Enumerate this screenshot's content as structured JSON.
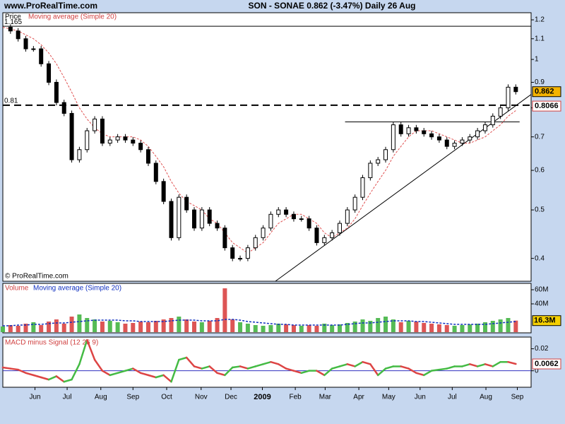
{
  "header": {
    "site": "www.ProRealTime.com",
    "title": "SON - SONAE    0.862 (-3.47%)    Daily  26 Aug",
    "copyright": "© ProRealTime.com"
  },
  "chart_data": [
    {
      "type": "line",
      "title": "Price",
      "log_scale": true,
      "ylim": [
        0.36,
        1.24
      ],
      "yticks": [
        0.4,
        0.5,
        0.6,
        0.7,
        0.8,
        0.9,
        1,
        1.1,
        1.2
      ],
      "xlim": [
        0,
        69
      ],
      "series": [
        {
          "name": "Price",
          "color": "#000000",
          "values": [
            1.16,
            1.14,
            1.1,
            1.05,
            1.05,
            0.98,
            0.9,
            0.82,
            0.78,
            0.63,
            0.66,
            0.72,
            0.76,
            0.68,
            0.69,
            0.7,
            0.69,
            0.68,
            0.66,
            0.62,
            0.57,
            0.52,
            0.44,
            0.53,
            0.5,
            0.46,
            0.5,
            0.47,
            0.46,
            0.42,
            0.4,
            0.4,
            0.42,
            0.44,
            0.46,
            0.49,
            0.5,
            0.49,
            0.48,
            0.48,
            0.46,
            0.43,
            0.44,
            0.45,
            0.47,
            0.5,
            0.53,
            0.58,
            0.62,
            0.63,
            0.66,
            0.74,
            0.71,
            0.73,
            0.72,
            0.71,
            0.7,
            0.69,
            0.67,
            0.68,
            0.69,
            0.7,
            0.72,
            0.74,
            0.77,
            0.8,
            0.88,
            0.862
          ]
        },
        {
          "name": "Moving average (Simple 20)",
          "color": "#e05050",
          "values": [
            1.16,
            1.15,
            1.14,
            1.12,
            1.1,
            1.07,
            1.03,
            0.98,
            0.92,
            0.86,
            0.8,
            0.76,
            0.73,
            0.71,
            0.7,
            0.7,
            0.7,
            0.7,
            0.69,
            0.67,
            0.64,
            0.61,
            0.57,
            0.54,
            0.52,
            0.51,
            0.5,
            0.48,
            0.47,
            0.45,
            0.43,
            0.42,
            0.41,
            0.42,
            0.43,
            0.45,
            0.47,
            0.48,
            0.49,
            0.49,
            0.48,
            0.47,
            0.45,
            0.44,
            0.45,
            0.46,
            0.48,
            0.51,
            0.54,
            0.57,
            0.6,
            0.64,
            0.67,
            0.7,
            0.72,
            0.72,
            0.72,
            0.71,
            0.7,
            0.69,
            0.68,
            0.68,
            0.69,
            0.7,
            0.72,
            0.74,
            0.77,
            0.79
          ]
        }
      ],
      "levels": [
        {
          "value": 1.165,
          "style": "solid"
        },
        {
          "value": 0.81,
          "style": "dashed"
        }
      ],
      "resistance": {
        "value": 0.75,
        "x": [
          44.7,
          67.5
        ]
      },
      "trendline": {
        "x": [
          35.6,
          69
        ],
        "y": [
          0.36,
          0.851
        ],
        "value": 0.8066
      }
    },
    {
      "type": "bar",
      "title": "Volume",
      "ylim": [
        0,
        68
      ],
      "xlim": [
        0,
        69
      ],
      "yticks": [
        {
          "value": 60,
          "label": "60M"
        },
        {
          "value": 40,
          "label": "40M"
        }
      ],
      "up_color": "#55bb55",
      "down_color": "#dd5555",
      "series": [
        {
          "name": "Volume",
          "color": "#dd5555",
          "values": [
            8,
            10,
            9,
            12,
            14,
            10,
            15,
            18,
            12,
            22,
            25,
            20,
            18,
            15,
            16,
            14,
            12,
            13,
            15,
            14,
            16,
            18,
            20,
            22,
            18,
            15,
            14,
            16,
            20,
            62,
            18,
            14,
            12,
            10,
            9,
            10,
            12,
            11,
            10,
            9,
            10,
            9,
            12,
            10,
            11,
            13,
            15,
            18,
            16,
            20,
            22,
            18,
            14,
            16,
            15,
            13,
            12,
            11,
            10,
            9,
            10,
            11,
            12,
            14,
            16,
            18,
            20,
            16.3
          ],
          "last_label": "16.3M"
        },
        {
          "name": "Moving average (Simple 20)",
          "color": "#1030c0",
          "values": [
            9,
            9,
            10,
            10,
            11,
            11,
            12,
            13,
            13,
            14,
            15,
            16,
            17,
            17,
            17,
            17,
            16,
            16,
            15,
            15,
            15,
            15,
            16,
            17,
            17,
            17,
            16,
            16,
            16,
            18,
            18,
            17,
            15,
            14,
            13,
            12,
            11,
            11,
            10,
            10,
            10,
            10,
            10,
            10,
            10,
            11,
            12,
            13,
            13,
            14,
            15,
            16,
            16,
            16,
            15,
            15,
            14,
            13,
            12,
            11,
            11,
            11,
            11,
            11,
            12,
            13,
            14,
            15
          ]
        }
      ]
    },
    {
      "type": "macd",
      "title": "MACD minus Signal (12 26 9)",
      "ylim": [
        -0.015,
        0.03
      ],
      "yticks": [
        0,
        0.02
      ],
      "up_color": "#44bb44",
      "down_color": "#dd4444",
      "zero_color": "#3030c0",
      "xlim": [
        0,
        69
      ],
      "xticks": [
        {
          "value": 4.2,
          "label": "Jun"
        },
        {
          "value": 8.4,
          "label": "Jul"
        },
        {
          "value": 12.8,
          "label": "Aug"
        },
        {
          "value": 17.0,
          "label": "Sep"
        },
        {
          "value": 21.4,
          "label": "Oct"
        },
        {
          "value": 25.9,
          "label": "Nov"
        },
        {
          "value": 29.8,
          "label": "Dec"
        },
        {
          "value": 33.9,
          "label": "2009"
        },
        {
          "value": 38.2,
          "label": "Feb"
        },
        {
          "value": 42.1,
          "label": "Mar"
        },
        {
          "value": 46.5,
          "label": "Apr"
        },
        {
          "value": 50.4,
          "label": "May"
        },
        {
          "value": 54.5,
          "label": "Jun"
        },
        {
          "value": 58.7,
          "label": "Jul"
        },
        {
          "value": 63.1,
          "label": "Aug"
        },
        {
          "value": 67.2,
          "label": "Sep"
        }
      ],
      "values": [
        0.003,
        0.002,
        0.001,
        -0.002,
        -0.004,
        -0.006,
        -0.008,
        -0.005,
        -0.01,
        -0.008,
        0.006,
        0.028,
        0.01,
        0.0,
        -0.004,
        -0.002,
        0.0,
        0.002,
        -0.002,
        -0.004,
        -0.006,
        -0.004,
        -0.01,
        0.01,
        0.012,
        0.004,
        0.002,
        0.004,
        -0.002,
        -0.004,
        0.003,
        0.004,
        0.002,
        0.004,
        0.006,
        0.008,
        0.006,
        0.002,
        0.0,
        -0.002,
        0.0,
        0.0,
        -0.004,
        0.002,
        0.004,
        0.006,
        0.004,
        0.008,
        0.006,
        -0.004,
        0.002,
        0.004,
        0.004,
        0.002,
        -0.002,
        -0.004,
        0.0,
        0.001,
        0.002,
        0.004,
        0.004,
        0.006,
        0.004,
        0.006,
        0.004,
        0.008,
        0.008,
        0.0062
      ]
    }
  ]
}
